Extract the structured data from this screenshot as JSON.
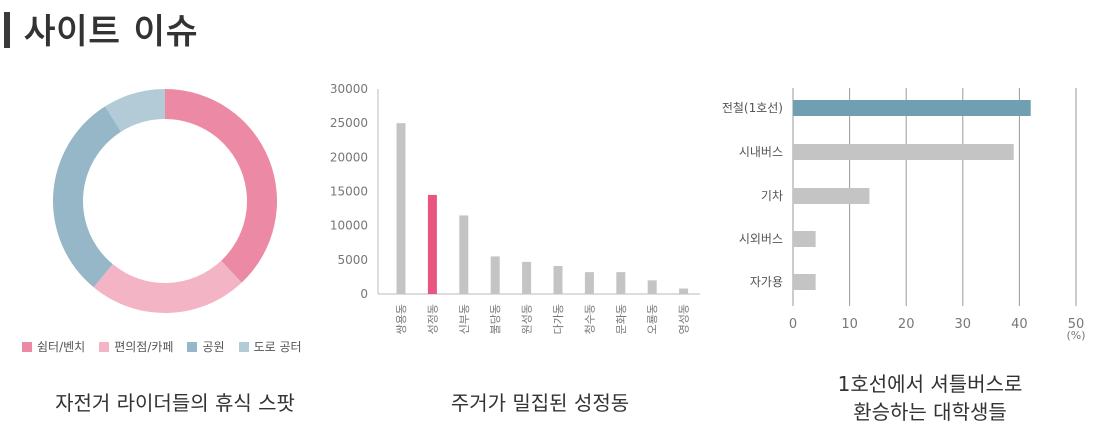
{
  "page": {
    "title": "사이트 이슈"
  },
  "chart_data": [
    {
      "type": "pie",
      "donut": true,
      "title": "",
      "caption": "자전거 라이더들의 휴식 스팟",
      "slices": [
        {
          "label": "쉼터/벤치",
          "value": 38,
          "color": "#ec8aa5"
        },
        {
          "label": "편의점/카페",
          "value": 23,
          "color": "#f3b4c5"
        },
        {
          "label": "공원",
          "value": 30,
          "color": "#95b7c8"
        },
        {
          "label": "도로 공터",
          "value": 9,
          "color": "#b3cbd6"
        }
      ],
      "legend_position": "bottom"
    },
    {
      "type": "bar",
      "title": "",
      "caption": "주거가 밀집된 성정동",
      "categories": [
        "쌍용동",
        "성정동",
        "신부동",
        "불당동",
        "원성동",
        "다가동",
        "청수동",
        "문화동",
        "오룡동",
        "영성동"
      ],
      "values": [
        25000,
        14500,
        11500,
        5500,
        4700,
        4100,
        3200,
        3200,
        2000,
        800
      ],
      "highlight_index": 1,
      "bar_color": "#c4c4c4",
      "highlight_color": "#e8557f",
      "yticks": [
        "0",
        "5000",
        "10000",
        "15000",
        "20000",
        "25000",
        "30000"
      ],
      "ylim": [
        0,
        30000
      ],
      "grid": false
    },
    {
      "type": "bar",
      "orientation": "horizontal",
      "title": "",
      "caption_lines": [
        "1호선에서 셔틀버스로",
        "환승하는 대학생들"
      ],
      "categories": [
        "전철(1호선)",
        "시내버스",
        "기차",
        "시외버스",
        "자가용"
      ],
      "values": [
        42,
        39,
        13.5,
        4,
        4
      ],
      "highlight_index": 0,
      "bar_color": "#c4c4c4",
      "highlight_color": "#6f9fb1",
      "xticks": [
        "0",
        "10",
        "20",
        "30",
        "40",
        "50"
      ],
      "unit": "(%)",
      "xlim": [
        0,
        50
      ],
      "grid": true
    }
  ]
}
